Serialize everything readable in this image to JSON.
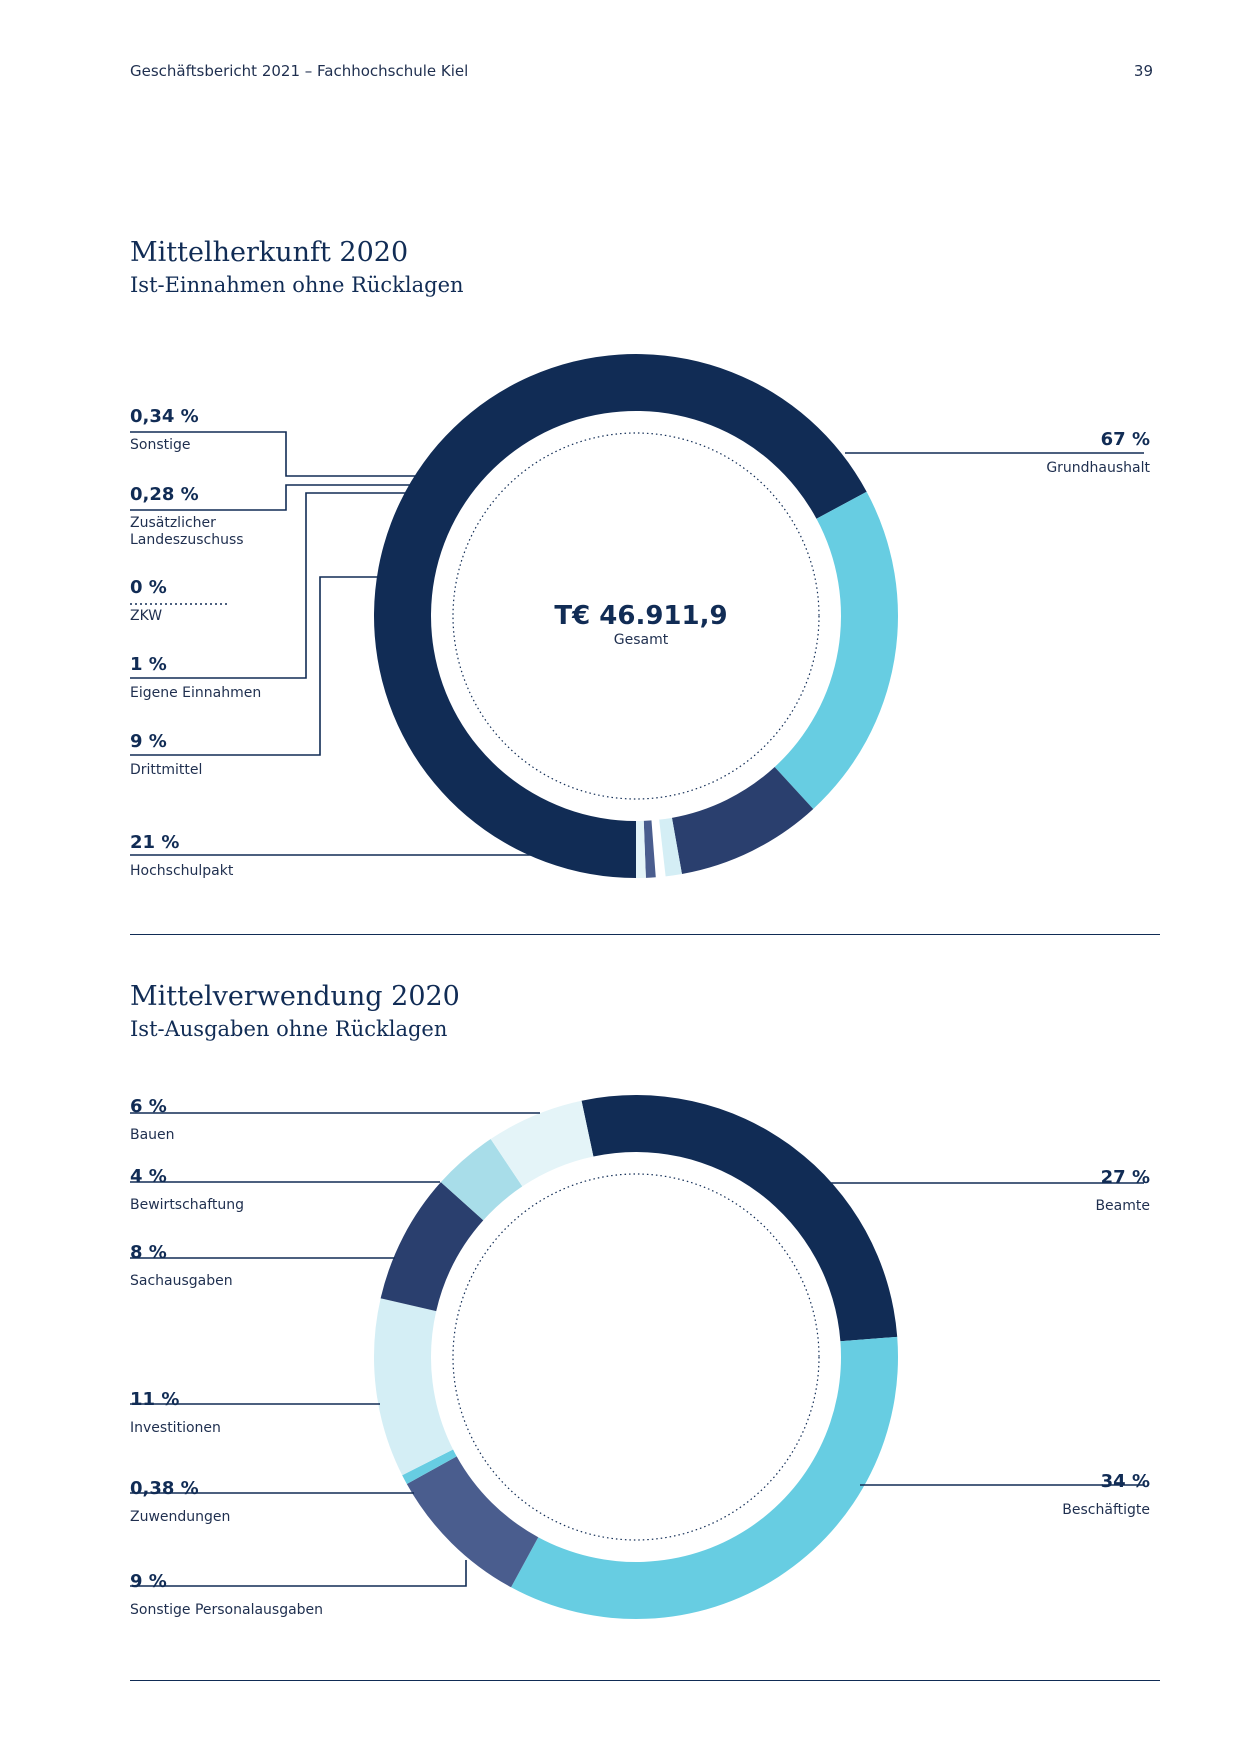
{
  "header": {
    "left": "Geschäftsbericht 2021 – Fachhochschule Kiel",
    "page_number": "39"
  },
  "section1": {
    "title": "Mittelherkunft 2020",
    "subtitle": "Ist-Einnahmen ohne Rücklagen",
    "total": "T€ 46.911,9",
    "total_label": "Gesamt"
  },
  "section2": {
    "title": "Mittelverwendung 2020",
    "subtitle": "Ist-Ausgaben ohne Rücklagen"
  },
  "chart_data": [
    {
      "type": "pie",
      "title": "Mittelherkunft 2020",
      "subtitle": "Ist-Einnahmen ohne Rücklagen",
      "total": "T€ 46.911,9",
      "total_label": "Gesamt",
      "slices": [
        {
          "label": "Grundhaushalt",
          "value": 67,
          "display": "67 %",
          "color": "#112c55"
        },
        {
          "label": "Hochschulpakt",
          "value": 21,
          "display": "21 %",
          "color": "#67cde2"
        },
        {
          "label": "Drittmittel",
          "value": 9,
          "display": "9 %",
          "color": "#2a3f6e"
        },
        {
          "label": "Eigene Einnahmen",
          "value": 1,
          "display": "1 %",
          "color": "#d4eef5"
        },
        {
          "label": "ZKW",
          "value": 0,
          "display": "0 %",
          "color": "#a8dde9"
        },
        {
          "label": "Zusätzlicher\nLandeszuschuss",
          "value": 0.28,
          "display": "0,28 %",
          "color": "#4a5d8e"
        },
        {
          "label": "Sonstige",
          "value": 0.34,
          "display": "0,34 %",
          "color": "#e4f4f8"
        }
      ]
    },
    {
      "type": "pie",
      "title": "Mittelverwendung 2020",
      "subtitle": "Ist-Ausgaben ohne Rücklagen",
      "slices": [
        {
          "label": "Beamte",
          "value": 27,
          "display": "27 %",
          "color": "#112c55"
        },
        {
          "label": "Beschäftigte",
          "value": 34,
          "display": "34 %",
          "color": "#67cde2"
        },
        {
          "label": "Sonstige Personalausgaben",
          "value": 9,
          "display": "9 %",
          "color": "#4a5d8e"
        },
        {
          "label": "Zuwendungen",
          "value": 0.38,
          "display": "0,38 %",
          "color": "#67cde2"
        },
        {
          "label": "Investitionen",
          "value": 11,
          "display": "11 %",
          "color": "#d4eef5"
        },
        {
          "label": "Sachausgaben",
          "value": 8,
          "display": "8 %",
          "color": "#2a3f6e"
        },
        {
          "label": "Bewirtschaftung",
          "value": 4,
          "display": "4 %",
          "color": "#a8dde9"
        },
        {
          "label": "Bauen",
          "value": 6,
          "display": "6 %",
          "color": "#e4f4f8"
        }
      ]
    }
  ]
}
